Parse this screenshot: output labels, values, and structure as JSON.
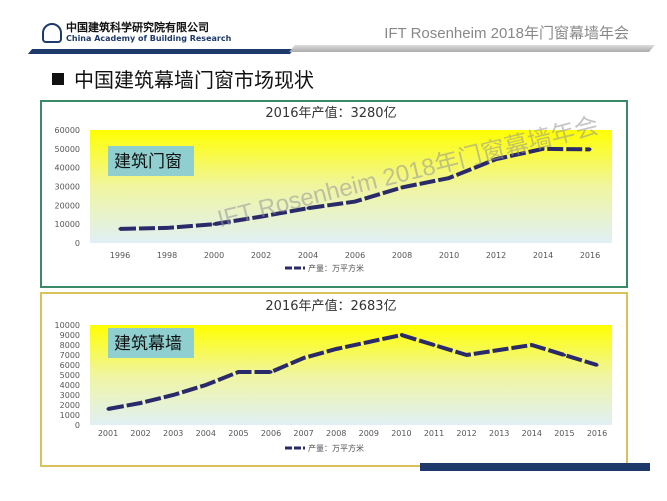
{
  "header": {
    "org_cn": "中国建筑科学研究院有限公司",
    "org_en": "China Academy of Building Research",
    "logo_mark": "CABR",
    "conference": "IFT Rosenheim 2018年门窗幕墙年会"
  },
  "page_title": "中国建筑幕墙门窗市场现状",
  "watermark": "IFT Rosenheim 2018年门窗幕墙年会",
  "colors": {
    "line": "#2a2a6a",
    "label_box": "#8fcfcf",
    "frame1": "#3a8a6a",
    "frame2": "#d9c25a"
  },
  "chart_data": [
    {
      "type": "line",
      "title": "2016年产值：3280亿",
      "label": "建筑门窗",
      "legend": "产量：万平方米",
      "ylim": [
        0,
        60000
      ],
      "yticks": [
        0,
        10000,
        20000,
        30000,
        40000,
        50000,
        60000
      ],
      "categories": [
        "1996",
        "1998",
        "2000",
        "2002",
        "2004",
        "2006",
        "2008",
        "2010",
        "2012",
        "2014",
        "2016"
      ],
      "values": [
        7500,
        8000,
        10000,
        14000,
        18500,
        22000,
        29500,
        34500,
        44500,
        50000,
        49700
      ]
    },
    {
      "type": "line",
      "title": "2016年产值：2683亿",
      "label": "建筑幕墙",
      "legend": "产量：万平方米",
      "ylim": [
        0,
        10000
      ],
      "yticks": [
        0,
        1000,
        2000,
        3000,
        4000,
        5000,
        6000,
        7000,
        8000,
        9000,
        10000
      ],
      "categories": [
        "2001",
        "2002",
        "2003",
        "2004",
        "2005",
        "2006",
        "2007",
        "2008",
        "2009",
        "2010",
        "2011",
        "2012",
        "2013",
        "2014",
        "2015",
        "2016"
      ],
      "values": [
        1600,
        2200,
        3000,
        4000,
        5300,
        5300,
        6700,
        7600,
        8300,
        9000,
        8000,
        7000,
        7500,
        8000,
        7000,
        6000
      ]
    }
  ]
}
